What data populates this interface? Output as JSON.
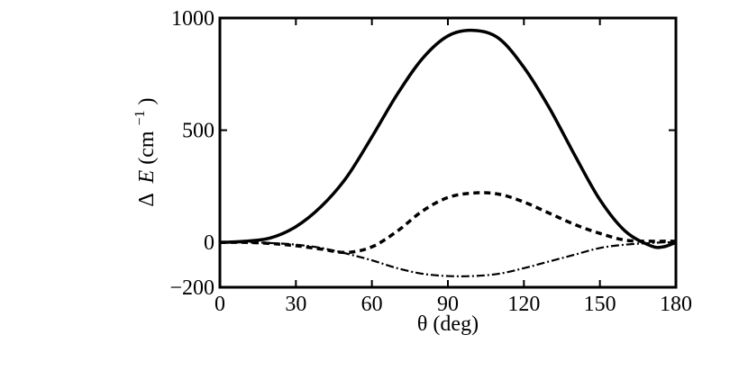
{
  "chart_data": {
    "type": "line",
    "title": "",
    "xlabel": "θ   (deg)",
    "ylabel": {
      "main": "Δ",
      "var": "E",
      "unit_open": "  (cm",
      "unit_exp": "−1",
      "unit_close": ")"
    },
    "xlim": [
      0,
      180
    ],
    "ylim": [
      -200,
      1000
    ],
    "xticks": [
      0,
      30,
      60,
      90,
      120,
      150,
      180
    ],
    "yticks": [
      -200,
      0,
      500,
      1000
    ],
    "xtick_labels": [
      "0",
      "30",
      "60",
      "90",
      "120",
      "150",
      "180"
    ],
    "ytick_labels": [
      "−200",
      "0",
      "500",
      "1000"
    ],
    "grid": false,
    "legend": "none",
    "x": [
      0,
      10,
      20,
      30,
      40,
      50,
      60,
      70,
      80,
      90,
      100,
      110,
      120,
      130,
      140,
      150,
      160,
      170,
      175,
      180
    ],
    "series": [
      {
        "style": "solid",
        "values": [
          0,
          5,
          20,
          70,
          160,
          290,
          470,
          660,
          820,
          920,
          945,
          910,
          780,
          600,
          390,
          190,
          50,
          -15,
          -20,
          0
        ]
      },
      {
        "style": "dashed",
        "values": [
          0,
          0,
          -5,
          -15,
          -30,
          -45,
          -20,
          50,
          140,
          200,
          220,
          215,
          180,
          130,
          80,
          40,
          10,
          5,
          5,
          5
        ]
      },
      {
        "style": "dashdot",
        "values": [
          0,
          0,
          -3,
          -10,
          -25,
          -50,
          -80,
          -115,
          -140,
          -150,
          -150,
          -140,
          -115,
          -85,
          -55,
          -25,
          -10,
          -3,
          0,
          0
        ]
      }
    ]
  }
}
